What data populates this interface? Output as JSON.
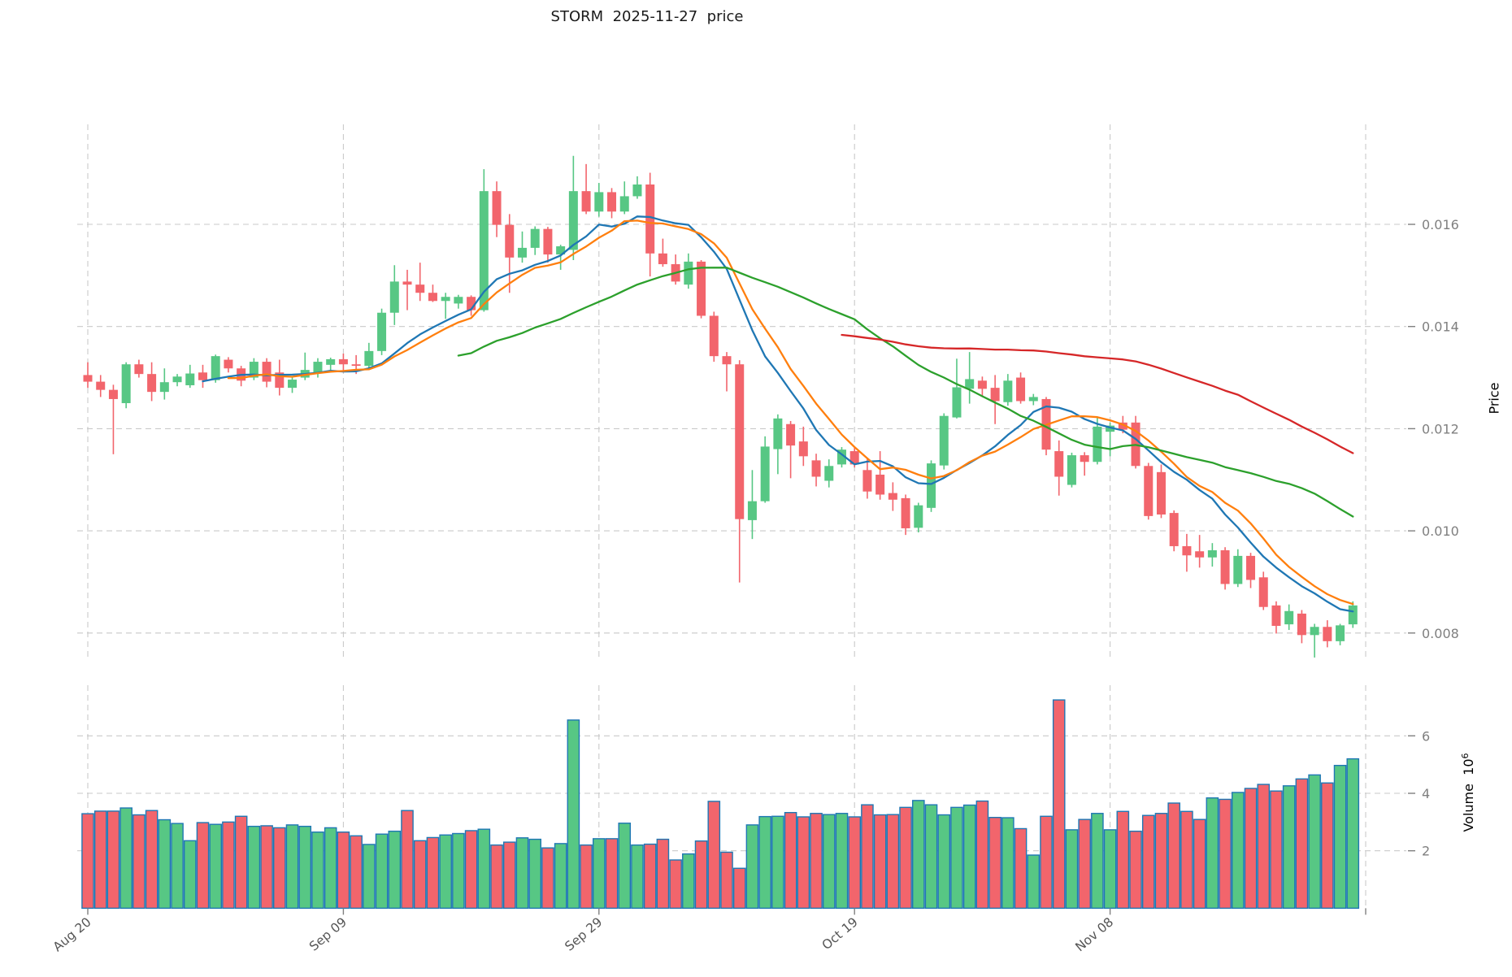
{
  "title": "STORM  2025-11-27  price",
  "price_axis": {
    "label": "Price",
    "ticks": [
      "0.008",
      "0.010",
      "0.012",
      "0.014",
      "0.016"
    ],
    "tick_values": [
      0.008,
      0.01,
      0.012,
      0.014,
      0.016
    ]
  },
  "volume_axis": {
    "label": "Volume",
    "unit_base": "10",
    "unit_exponent": "6",
    "ticks": [
      "2",
      "4",
      "6"
    ],
    "tick_values": [
      2,
      4,
      6
    ]
  },
  "x_axis": {
    "tick_labels": [
      "Aug 20",
      "Sep 09",
      "Sep 29",
      "Oct 19",
      "Nov 08"
    ],
    "tick_day_indices": [
      0,
      20,
      40,
      60,
      80
    ],
    "extra_tick_day_index": 100
  },
  "colors": {
    "up": "#57C784",
    "down": "#F2656C",
    "volume_edge": "#1f77b4",
    "grid": "#c9c9c9",
    "y_tick_label": "#7f7f7f",
    "x_tick_label": "#555555",
    "tick_mark": "#808080",
    "title": "#1a1a1a"
  },
  "chart_data": {
    "type": "candlestick",
    "panels": [
      "price",
      "volume"
    ],
    "title": "STORM  2025-11-27  price",
    "ylabel": "Price",
    "ylabel2": "Volume 10^6",
    "price_ylim": [
      0.00747,
      0.01796
    ],
    "volume_ylim_millions": [
      0,
      7.76
    ],
    "grid": true,
    "dates": [
      "Aug 20",
      "Aug 21",
      "Aug 22",
      "Aug 23",
      "Aug 24",
      "Aug 25",
      "Aug 26",
      "Aug 27",
      "Aug 28",
      "Aug 29",
      "Aug 30",
      "Aug 31",
      "Sep 01",
      "Sep 02",
      "Sep 03",
      "Sep 04",
      "Sep 05",
      "Sep 06",
      "Sep 07",
      "Sep 08",
      "Sep 09",
      "Sep 10",
      "Sep 11",
      "Sep 12",
      "Sep 13",
      "Sep 14",
      "Sep 15",
      "Sep 16",
      "Sep 17",
      "Sep 18",
      "Sep 19",
      "Sep 20",
      "Sep 21",
      "Sep 22",
      "Sep 23",
      "Sep 24",
      "Sep 25",
      "Sep 26",
      "Sep 27",
      "Sep 28",
      "Sep 29",
      "Sep 30",
      "Oct 01",
      "Oct 02",
      "Oct 03",
      "Oct 04",
      "Oct 05",
      "Oct 06",
      "Oct 07",
      "Oct 08",
      "Oct 09",
      "Oct 10",
      "Oct 11",
      "Oct 12",
      "Oct 13",
      "Oct 14",
      "Oct 15",
      "Oct 16",
      "Oct 17",
      "Oct 18",
      "Oct 19",
      "Oct 20",
      "Oct 21",
      "Oct 22",
      "Oct 23",
      "Oct 24",
      "Oct 25",
      "Oct 26",
      "Oct 27",
      "Oct 28",
      "Oct 29",
      "Oct 30",
      "Oct 31",
      "Nov 01",
      "Nov 02",
      "Nov 03",
      "Nov 04",
      "Nov 05",
      "Nov 06",
      "Nov 07",
      "Nov 08",
      "Nov 09",
      "Nov 10",
      "Nov 11",
      "Nov 12",
      "Nov 13",
      "Nov 14",
      "Nov 15",
      "Nov 16",
      "Nov 17",
      "Nov 18",
      "Nov 19",
      "Nov 20",
      "Nov 21",
      "Nov 22",
      "Nov 23",
      "Nov 24",
      "Nov 25",
      "Nov 26",
      "Nov 27"
    ],
    "open": [
      0.01305,
      0.01292,
      0.01276,
      0.0125,
      0.01326,
      0.01307,
      0.01272,
      0.01291,
      0.01285,
      0.0131,
      0.01295,
      0.01335,
      0.01318,
      0.013,
      0.01331,
      0.0131,
      0.0128,
      0.013,
      0.0131,
      0.01325,
      0.01336,
      0.01326,
      0.01323,
      0.01352,
      0.01427,
      0.01488,
      0.01482,
      0.01466,
      0.0145,
      0.01445,
      0.01458,
      0.01432,
      0.01665,
      0.01599,
      0.01535,
      0.01554,
      0.01591,
      0.01541,
      0.0155,
      0.01665,
      0.01625,
      0.01663,
      0.01625,
      0.01655,
      0.01678,
      0.01543,
      0.01522,
      0.01482,
      0.01527,
      0.01421,
      0.01342,
      0.01326,
      0.01021,
      0.01058,
      0.0116,
      0.01209,
      0.01175,
      0.01138,
      0.01098,
      0.0113,
      0.01156,
      0.01119,
      0.0111,
      0.01074,
      0.01064,
      0.01006,
      0.01045,
      0.01128,
      0.01222,
      0.01278,
      0.01294,
      0.0128,
      0.01252,
      0.013,
      0.01254,
      0.01258,
      0.01156,
      0.0109,
      0.01148,
      0.01135,
      0.01194,
      0.01212,
      0.01212,
      0.01127,
      0.01115,
      0.01035,
      0.0097,
      0.0096,
      0.00948,
      0.00962,
      0.00896,
      0.00951,
      0.00909,
      0.00854,
      0.00817,
      0.00838,
      0.00796,
      0.00812,
      0.00784,
      0.00817
    ],
    "high": [
      0.0133,
      0.01305,
      0.01286,
      0.0133,
      0.01335,
      0.0133,
      0.01318,
      0.01307,
      0.01325,
      0.01325,
      0.01345,
      0.0134,
      0.01323,
      0.01338,
      0.01338,
      0.01335,
      0.013,
      0.01349,
      0.01338,
      0.01339,
      0.01347,
      0.01344,
      0.01368,
      0.01435,
      0.0152,
      0.01511,
      0.01525,
      0.01482,
      0.01466,
      0.01462,
      0.01461,
      0.01708,
      0.01684,
      0.0162,
      0.01586,
      0.01596,
      0.01595,
      0.0156,
      0.01734,
      0.01718,
      0.01681,
      0.01671,
      0.01684,
      0.01694,
      0.01701,
      0.01572,
      0.01541,
      0.01543,
      0.0153,
      0.01429,
      0.0135,
      0.01334,
      0.01119,
      0.01185,
      0.01228,
      0.01215,
      0.01204,
      0.01151,
      0.0114,
      0.01164,
      0.01163,
      0.01143,
      0.01156,
      0.01095,
      0.01071,
      0.01055,
      0.01138,
      0.0123,
      0.01337,
      0.0135,
      0.01302,
      0.01305,
      0.01307,
      0.0131,
      0.01268,
      0.01262,
      0.01177,
      0.01153,
      0.01154,
      0.01222,
      0.01212,
      0.01225,
      0.01225,
      0.01133,
      0.0113,
      0.0104,
      0.00994,
      0.00992,
      0.00976,
      0.00968,
      0.00964,
      0.00957,
      0.0092,
      0.00862,
      0.00856,
      0.00845,
      0.00818,
      0.00825,
      0.00818,
      0.00862
    ],
    "low": [
      0.0128,
      0.01262,
      0.0115,
      0.0124,
      0.013,
      0.01254,
      0.01257,
      0.01283,
      0.0128,
      0.0128,
      0.0129,
      0.0131,
      0.01283,
      0.01295,
      0.01281,
      0.01265,
      0.0127,
      0.01295,
      0.013,
      0.01315,
      0.0131,
      0.01307,
      0.01317,
      0.01344,
      0.01403,
      0.01432,
      0.0145,
      0.01448,
      0.01415,
      0.01435,
      0.01421,
      0.01429,
      0.01575,
      0.01466,
      0.01525,
      0.0154,
      0.01525,
      0.01511,
      0.0153,
      0.0162,
      0.01615,
      0.01612,
      0.0162,
      0.0165,
      0.01498,
      0.01517,
      0.01482,
      0.01474,
      0.01416,
      0.01331,
      0.01273,
      0.00899,
      0.00984,
      0.01055,
      0.01111,
      0.01103,
      0.01127,
      0.01087,
      0.01085,
      0.01124,
      0.01124,
      0.01063,
      0.01061,
      0.01039,
      0.00992,
      0.00997,
      0.01037,
      0.0112,
      0.0122,
      0.01249,
      0.01262,
      0.01209,
      0.01245,
      0.01249,
      0.01246,
      0.01148,
      0.01069,
      0.01085,
      0.01108,
      0.0113,
      0.01146,
      0.01191,
      0.01122,
      0.01022,
      0.01025,
      0.0096,
      0.0092,
      0.00928,
      0.0093,
      0.00885,
      0.0089,
      0.00888,
      0.00845,
      0.00799,
      0.00806,
      0.0078,
      0.00752,
      0.00772,
      0.00776,
      0.0081
    ],
    "close": [
      0.01292,
      0.01276,
      0.01258,
      0.01326,
      0.01307,
      0.01272,
      0.01291,
      0.01302,
      0.01308,
      0.01295,
      0.01342,
      0.01318,
      0.01294,
      0.01331,
      0.01292,
      0.0128,
      0.01296,
      0.01315,
      0.01331,
      0.01336,
      0.01326,
      0.01323,
      0.01352,
      0.01427,
      0.01488,
      0.01482,
      0.01466,
      0.0145,
      0.01458,
      0.01458,
      0.01432,
      0.01665,
      0.01599,
      0.01535,
      0.01554,
      0.01591,
      0.01541,
      0.01557,
      0.01665,
      0.01625,
      0.01663,
      0.01625,
      0.01655,
      0.01678,
      0.01543,
      0.01522,
      0.01488,
      0.01527,
      0.01421,
      0.01342,
      0.01326,
      0.01023,
      0.01058,
      0.01165,
      0.0122,
      0.01167,
      0.01146,
      0.01106,
      0.01127,
      0.01159,
      0.0113,
      0.01077,
      0.01071,
      0.01061,
      0.01005,
      0.0105,
      0.01132,
      0.01225,
      0.01281,
      0.01297,
      0.01278,
      0.01254,
      0.01294,
      0.01254,
      0.01262,
      0.01159,
      0.01106,
      0.01148,
      0.01135,
      0.01204,
      0.01206,
      0.01198,
      0.01127,
      0.01029,
      0.01032,
      0.0097,
      0.00952,
      0.00948,
      0.00962,
      0.00896,
      0.00951,
      0.00904,
      0.00851,
      0.00814,
      0.00843,
      0.00796,
      0.00812,
      0.00784,
      0.00815,
      0.00854
    ],
    "volume_millions": [
      3.29,
      3.38,
      3.38,
      3.49,
      3.25,
      3.4,
      3.08,
      2.95,
      2.35,
      2.98,
      2.92,
      3.0,
      3.2,
      2.85,
      2.87,
      2.8,
      2.9,
      2.85,
      2.65,
      2.8,
      2.65,
      2.52,
      2.22,
      2.58,
      2.68,
      3.4,
      2.35,
      2.46,
      2.55,
      2.6,
      2.7,
      2.75,
      2.2,
      2.3,
      2.45,
      2.4,
      2.1,
      2.25,
      6.55,
      2.2,
      2.42,
      2.42,
      2.96,
      2.2,
      2.23,
      2.4,
      1.68,
      1.89,
      2.34,
      3.72,
      1.95,
      1.39,
      2.9,
      3.19,
      3.2,
      3.33,
      3.18,
      3.3,
      3.26,
      3.3,
      3.18,
      3.6,
      3.25,
      3.26,
      3.51,
      3.75,
      3.6,
      3.25,
      3.51,
      3.59,
      3.73,
      3.16,
      3.15,
      2.77,
      1.85,
      3.2,
      7.25,
      2.73,
      3.09,
      3.3,
      2.73,
      3.37,
      2.68,
      3.23,
      3.3,
      3.66,
      3.37,
      3.09,
      3.84,
      3.79,
      4.03,
      4.17,
      4.31,
      4.08,
      4.26,
      4.5,
      4.64,
      4.36,
      4.97,
      5.2
    ],
    "moving_averages": [
      {
        "name": "ma-fast-blue",
        "window": 10,
        "color": "#1f77b4"
      },
      {
        "name": "ma-medium-orange",
        "window": 12,
        "color": "#ff7f0e"
      },
      {
        "name": "ma-slow-green",
        "window": 30,
        "color": "#2ca02c"
      },
      {
        "name": "ma-slowest-red",
        "window": 60,
        "color": "#d62728"
      }
    ],
    "legend_position": "none"
  }
}
